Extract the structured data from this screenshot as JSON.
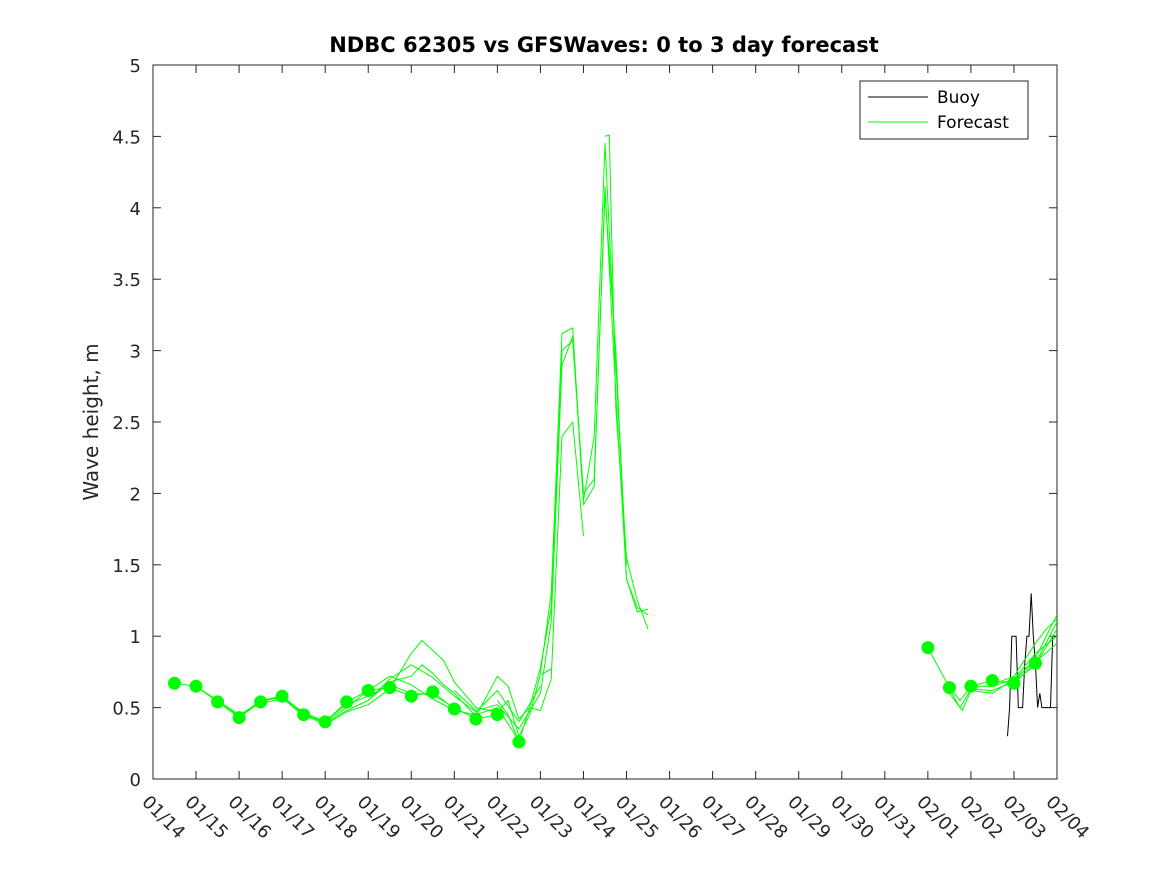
{
  "chart_data": {
    "type": "line",
    "title": "NDBC 62305 vs GFSWaves: 0 to 3 day forecast",
    "xlabel": "",
    "ylabel": "Wave height, m",
    "x_unit": "days since 01/14",
    "xlim": [
      0,
      21
    ],
    "ylim": [
      0,
      5
    ],
    "y_ticks": [
      0,
      0.5,
      1,
      1.5,
      2,
      2.5,
      3,
      3.5,
      4,
      4.5,
      5
    ],
    "y_tick_labels": [
      "0",
      "0.5",
      "1",
      "1.5",
      "2",
      "2.5",
      "3",
      "3.5",
      "4",
      "4.5",
      "5"
    ],
    "x_ticks": [
      0,
      1,
      2,
      3,
      4,
      5,
      6,
      7,
      8,
      9,
      10,
      11,
      12,
      13,
      14,
      15,
      16,
      17,
      18,
      19,
      20,
      21
    ],
    "x_tick_labels": [
      "01/14",
      "01/15",
      "01/16",
      "01/17",
      "01/18",
      "01/19",
      "01/20",
      "01/21",
      "01/22",
      "01/23",
      "01/24",
      "01/25",
      "01/26",
      "01/27",
      "01/28",
      "01/29",
      "01/30",
      "01/31",
      "02/01",
      "02/02",
      "02/03",
      "02/04"
    ],
    "grid": false,
    "legend": {
      "position": "top-right",
      "entries": [
        "Buoy",
        "Forecast"
      ]
    },
    "colors": {
      "buoy": "#000000",
      "forecast": "#00ff00",
      "axes": "#262626"
    },
    "series": [
      {
        "name": "Buoy",
        "color": "#000000",
        "x": [
          19.85,
          19.9,
          19.95,
          20.0,
          20.05,
          20.1,
          20.15,
          20.2,
          20.25,
          20.3,
          20.35,
          20.4,
          20.45,
          20.5,
          20.55,
          20.6,
          20.65,
          20.7,
          20.75,
          20.8,
          20.85,
          20.9,
          21.0
        ],
        "y": [
          0.3,
          0.5,
          1.0,
          1.0,
          1.0,
          0.5,
          0.5,
          0.5,
          0.8,
          1.0,
          1.0,
          1.3,
          1.0,
          0.8,
          0.5,
          0.6,
          0.5,
          0.5,
          0.5,
          0.5,
          0.5,
          1.0,
          1.0
        ]
      },
      {
        "name": "Forecast",
        "color": "#00ff00",
        "runs": [
          {
            "x": [
              0.5,
              1.0,
              1.5,
              2.0,
              2.5,
              3.0,
              3.5,
              4.0,
              4.5,
              5.0,
              5.5,
              6.0,
              6.5,
              7.0
            ],
            "y": [
              0.67,
              0.65,
              0.54,
              0.43,
              0.54,
              0.58,
              0.45,
              0.4,
              0.54,
              0.62,
              0.64,
              0.58,
              0.61,
              0.49
            ]
          },
          {
            "x": [
              1.0,
              1.5,
              2.0,
              2.5,
              3.0,
              3.5,
              4.0,
              4.5,
              5.0,
              5.5,
              6.0,
              6.5,
              7.0,
              7.5,
              8.0
            ],
            "y": [
              0.65,
              0.55,
              0.44,
              0.55,
              0.57,
              0.44,
              0.41,
              0.52,
              0.58,
              0.66,
              0.6,
              0.59,
              0.5,
              0.42,
              0.45
            ]
          },
          {
            "x": [
              1.5,
              2.0,
              2.5,
              3.0,
              3.5,
              4.0,
              4.5,
              5.0,
              5.5,
              6.0,
              6.5,
              7.0,
              7.5,
              8.0,
              8.5
            ],
            "y": [
              0.55,
              0.45,
              0.53,
              0.56,
              0.47,
              0.4,
              0.5,
              0.62,
              0.72,
              0.66,
              0.56,
              0.48,
              0.45,
              0.5,
              0.27
            ]
          },
          {
            "x": [
              2.0,
              2.5,
              3.0,
              3.5,
              4.0,
              4.5,
              5.0,
              5.5,
              6.0,
              6.5,
              7.0,
              7.5,
              8.0,
              8.5,
              9.0
            ],
            "y": [
              0.43,
              0.55,
              0.58,
              0.46,
              0.39,
              0.48,
              0.55,
              0.7,
              0.8,
              0.71,
              0.58,
              0.47,
              0.62,
              0.4,
              0.65
            ]
          },
          {
            "x": [
              3.0,
              3.5,
              4.0,
              4.5,
              5.0,
              5.5,
              6.0,
              6.25,
              6.5,
              6.75,
              7.0,
              7.5,
              8.0,
              8.25,
              8.5,
              8.75,
              9.0,
              9.25
            ],
            "y": [
              0.58,
              0.45,
              0.38,
              0.47,
              0.52,
              0.63,
              0.88,
              0.97,
              0.9,
              0.83,
              0.68,
              0.5,
              0.47,
              0.55,
              0.3,
              0.45,
              0.73,
              0.77
            ]
          },
          {
            "x": [
              5.0,
              5.5,
              6.0,
              6.25,
              6.5,
              6.75,
              7.0,
              7.5,
              8.0,
              8.25,
              8.5,
              8.75,
              9.0,
              9.25,
              9.5,
              9.75,
              10.0
            ],
            "y": [
              0.55,
              0.68,
              0.72,
              0.8,
              0.74,
              0.66,
              0.6,
              0.44,
              0.72,
              0.65,
              0.42,
              0.5,
              0.48,
              0.7,
              2.4,
              2.5,
              1.7
            ]
          },
          {
            "x": [
              7.0,
              7.5,
              8.0,
              8.5,
              9.0,
              9.25,
              9.5,
              9.75,
              10.0,
              10.25,
              10.5,
              10.75,
              11.0
            ],
            "y": [
              0.62,
              0.48,
              0.52,
              0.35,
              0.6,
              1.1,
              2.9,
              3.1,
              1.95,
              2.4,
              4.45,
              2.9,
              1.5
            ]
          },
          {
            "x": [
              8.0,
              8.25,
              8.5,
              8.75,
              9.0,
              9.25,
              9.5,
              9.75,
              10.0,
              10.25,
              10.5,
              10.75,
              11.0,
              11.25,
              11.5
            ],
            "y": [
              0.55,
              0.45,
              0.26,
              0.5,
              0.78,
              1.2,
              3.0,
              3.07,
              2.0,
              2.1,
              4.1,
              3.0,
              1.4,
              1.2,
              1.15
            ]
          },
          {
            "x": [
              9.0,
              9.25,
              9.5,
              9.75,
              10.0,
              10.25,
              10.5,
              10.75,
              11.0,
              11.25,
              11.5
            ],
            "y": [
              0.74,
              1.3,
              3.12,
              3.16,
              1.92,
              2.05,
              4.15,
              2.7,
              1.4,
              1.17,
              1.19
            ]
          },
          {
            "x": [
              10.5,
              10.6,
              10.75,
              11.0,
              11.25,
              11.5
            ],
            "y": [
              4.5,
              4.51,
              2.6,
              1.55,
              1.25,
              1.05
            ]
          },
          {
            "x": [
              18.0,
              18.5,
              18.75,
              19.0,
              19.5,
              20.0,
              20.5,
              21.0
            ],
            "y": [
              0.92,
              0.64,
              0.55,
              0.65,
              0.69,
              0.67,
              0.81,
              1.1
            ]
          },
          {
            "x": [
              18.5,
              18.75,
              19.0,
              19.5,
              20.0,
              20.5,
              21.0
            ],
            "y": [
              0.63,
              0.5,
              0.63,
              0.62,
              0.68,
              0.8,
              1.05
            ]
          },
          {
            "x": [
              18.5,
              18.8,
              19.0,
              19.5,
              20.0,
              20.5,
              21.0
            ],
            "y": [
              0.6,
              0.48,
              0.62,
              0.6,
              0.7,
              0.82,
              0.95
            ]
          },
          {
            "x": [
              19.0,
              19.5,
              20.0,
              20.5,
              21.0
            ],
            "y": [
              0.65,
              0.65,
              0.7,
              0.88,
              1.0
            ]
          },
          {
            "x": [
              19.5,
              20.0,
              20.5,
              20.75,
              21.0
            ],
            "y": [
              0.66,
              0.72,
              0.95,
              1.05,
              1.12
            ]
          },
          {
            "x": [
              20.0,
              20.5,
              21.0
            ],
            "y": [
              0.68,
              0.85,
              1.15
            ]
          }
        ],
        "markers": {
          "x": [
            0.5,
            1.0,
            1.5,
            2.0,
            2.5,
            3.0,
            3.5,
            4.0,
            4.5,
            5.0,
            5.5,
            6.0,
            6.5,
            7.0,
            7.5,
            8.0,
            8.5,
            18.0,
            18.5,
            19.0,
            19.5,
            20.0,
            20.5
          ],
          "y": [
            0.67,
            0.65,
            0.54,
            0.43,
            0.54,
            0.58,
            0.45,
            0.4,
            0.54,
            0.62,
            0.64,
            0.58,
            0.61,
            0.49,
            0.42,
            0.45,
            0.26,
            0.92,
            0.64,
            0.65,
            0.69,
            0.67,
            0.81
          ]
        }
      }
    ]
  }
}
